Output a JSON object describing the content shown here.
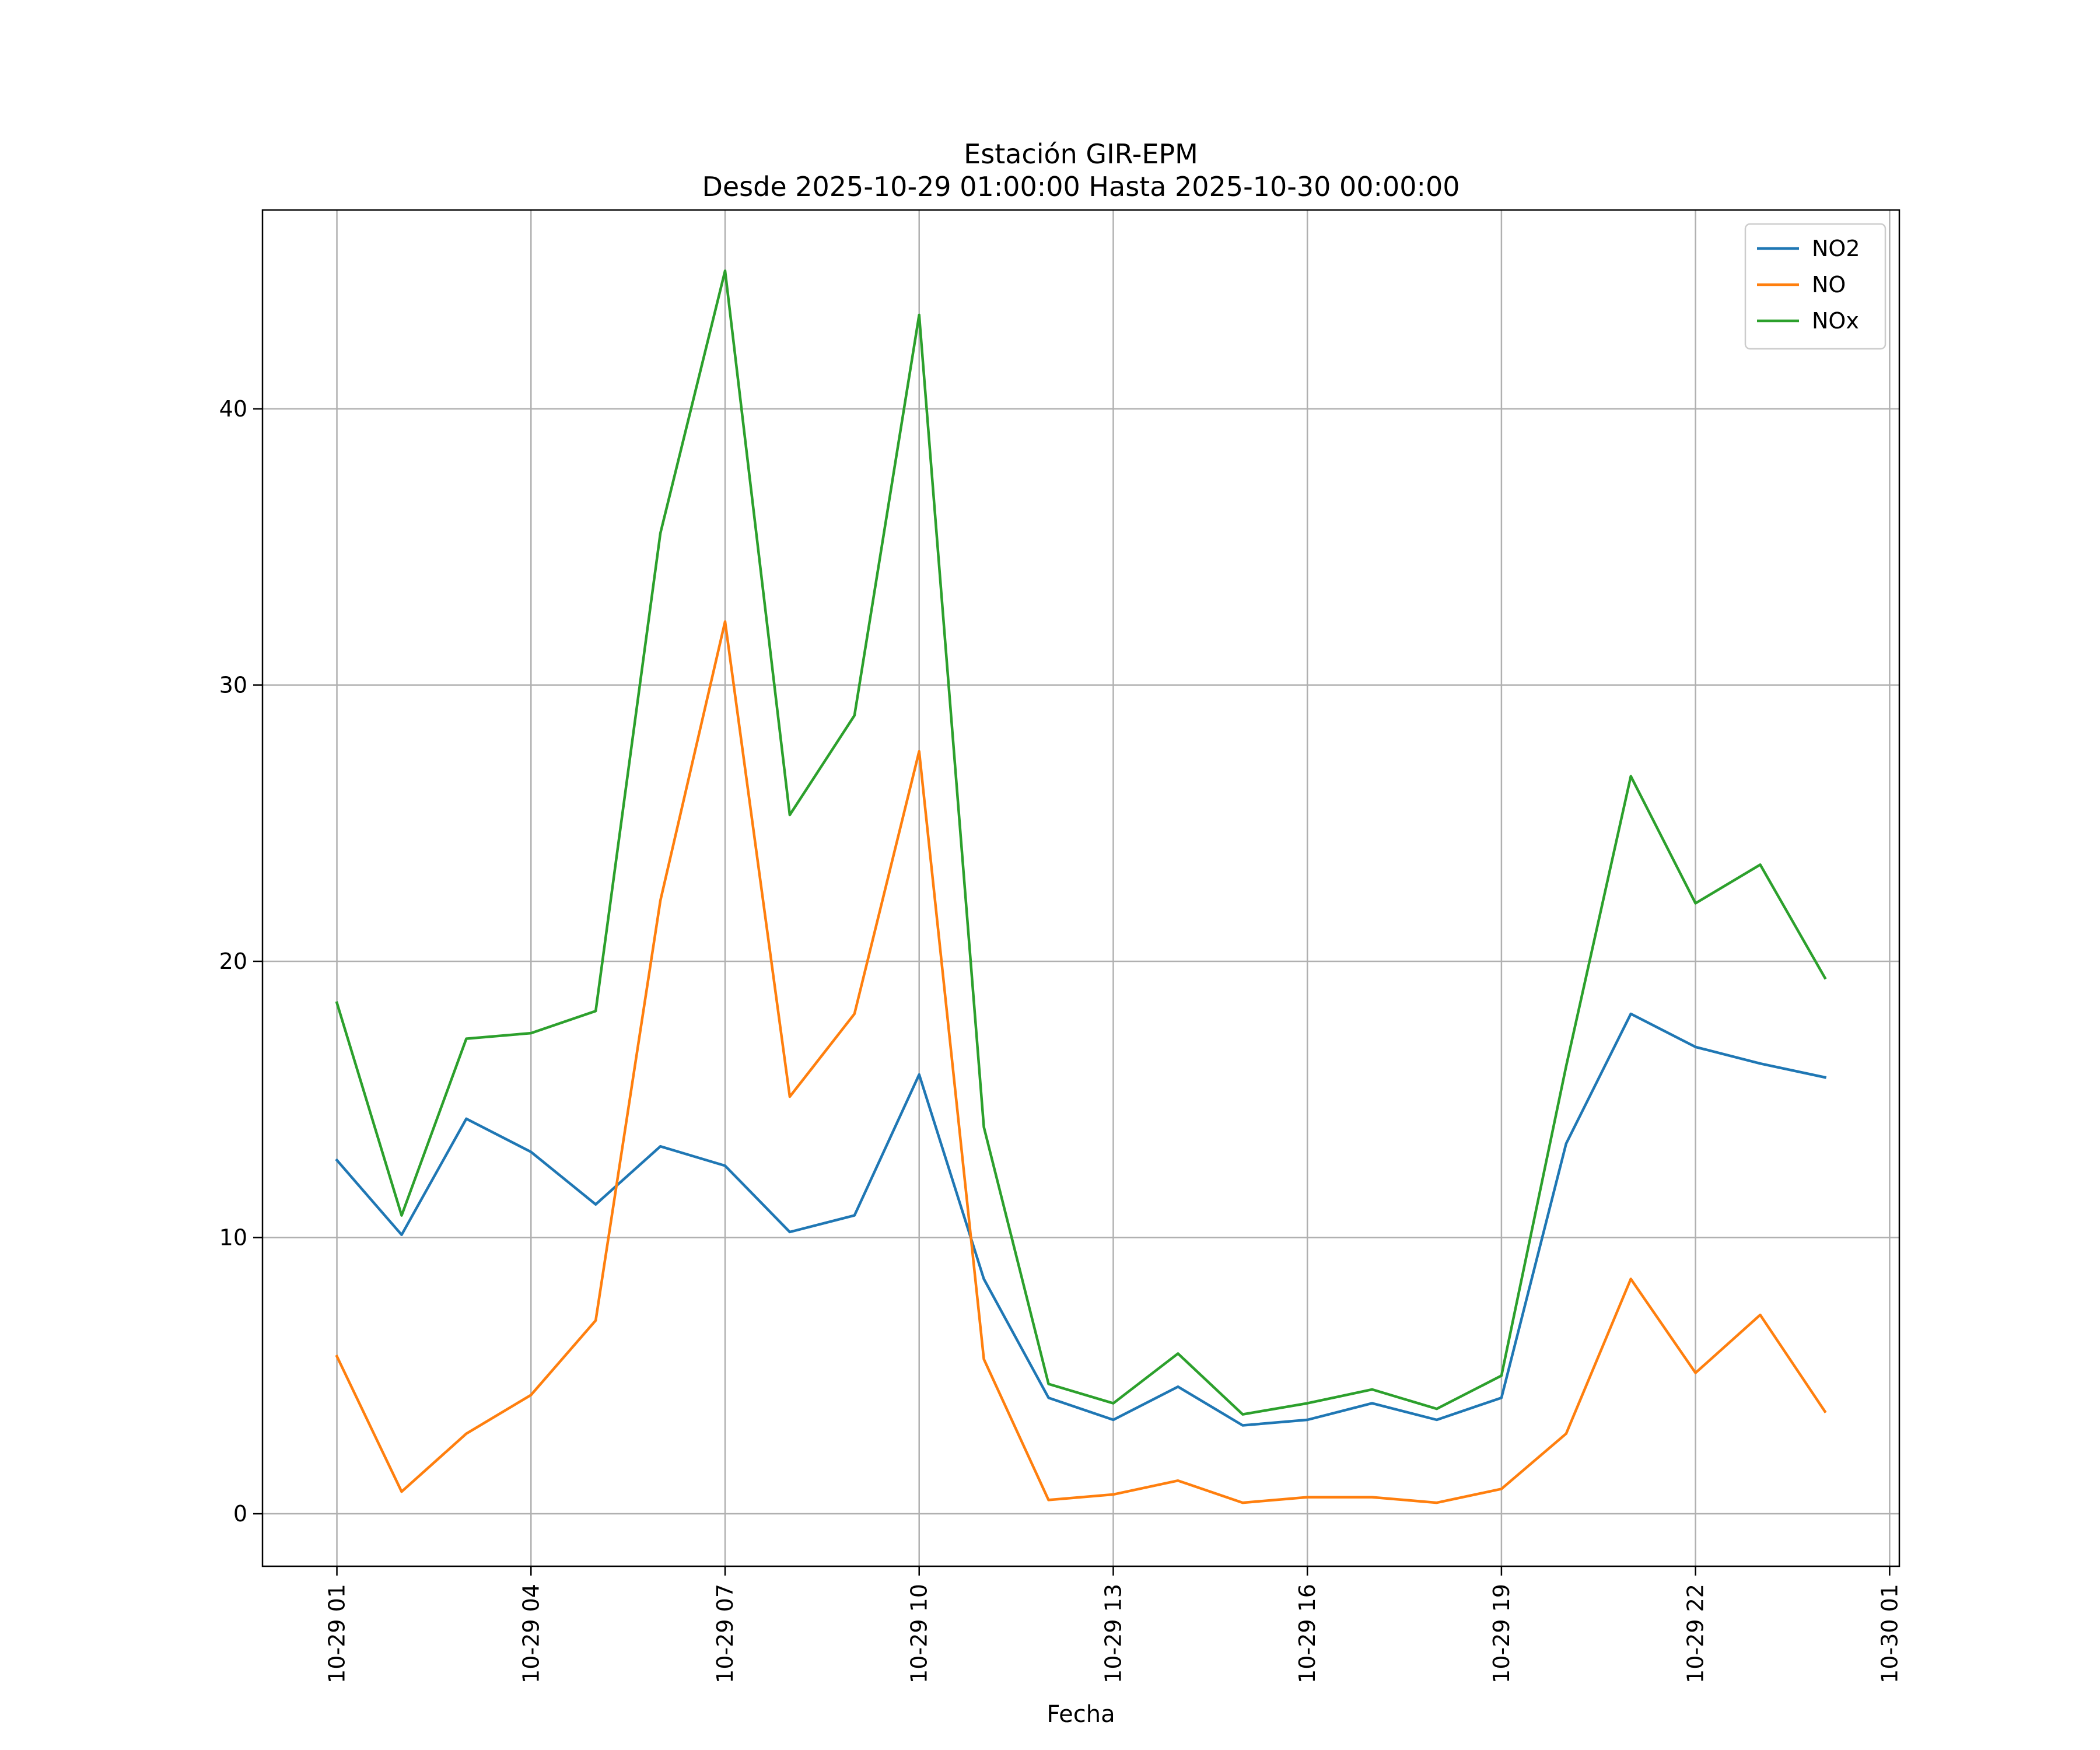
{
  "chart_data": {
    "type": "line",
    "title": "Estación GIR-EPM",
    "subtitle": "Desde 2025-10-29 01:00:00 Hasta 2025-10-30 00:00:00",
    "xlabel": "Fecha",
    "ylabel": "",
    "x": [
      "2025-10-29 01:00",
      "2025-10-29 02:00",
      "2025-10-29 03:00",
      "2025-10-29 04:00",
      "2025-10-29 05:00",
      "2025-10-29 06:00",
      "2025-10-29 07:00",
      "2025-10-29 08:00",
      "2025-10-29 09:00",
      "2025-10-29 10:00",
      "2025-10-29 11:00",
      "2025-10-29 12:00",
      "2025-10-29 13:00",
      "2025-10-29 14:00",
      "2025-10-29 15:00",
      "2025-10-29 16:00",
      "2025-10-29 17:00",
      "2025-10-29 18:00",
      "2025-10-29 19:00",
      "2025-10-29 20:00",
      "2025-10-29 21:00",
      "2025-10-29 22:00",
      "2025-10-29 23:00",
      "2025-10-30 00:00"
    ],
    "x_ticks": [
      "10-29 01",
      "10-29 04",
      "10-29 07",
      "10-29 10",
      "10-29 13",
      "10-29 16",
      "10-29 19",
      "10-29 22",
      "10-30 01"
    ],
    "y_ticks": [
      "0",
      "10",
      "20",
      "30",
      "40"
    ],
    "ylim": [
      -1.9,
      47.2
    ],
    "xlim": [
      "2025-10-28 23:51",
      "2025-10-30 01:09"
    ],
    "grid": true,
    "legend_position": "top-right",
    "series": [
      {
        "name": "NO2",
        "color": "#1f77b4",
        "values": [
          12.8,
          10.1,
          14.3,
          13.1,
          11.2,
          13.3,
          12.6,
          10.2,
          10.8,
          15.9,
          8.5,
          4.2,
          3.4,
          4.6,
          3.2,
          3.4,
          4.0,
          3.4,
          4.2,
          13.4,
          18.1,
          16.9,
          16.3,
          15.8
        ]
      },
      {
        "name": "NO",
        "color": "#ff7f0e",
        "values": [
          5.7,
          0.8,
          2.9,
          4.3,
          7.0,
          22.2,
          32.3,
          15.1,
          18.1,
          27.6,
          5.6,
          0.5,
          0.7,
          1.2,
          0.4,
          0.6,
          0.6,
          0.4,
          0.9,
          2.9,
          8.5,
          5.1,
          7.2,
          3.7
        ]
      },
      {
        "name": "NOx",
        "color": "#2ca02c",
        "values": [
          18.5,
          10.8,
          17.2,
          17.4,
          18.2,
          35.5,
          45.0,
          25.3,
          28.9,
          43.4,
          14.0,
          4.7,
          4.0,
          5.8,
          3.6,
          4.0,
          4.5,
          3.8,
          5.0,
          16.2,
          26.7,
          22.1,
          23.5,
          19.4
        ]
      }
    ]
  }
}
